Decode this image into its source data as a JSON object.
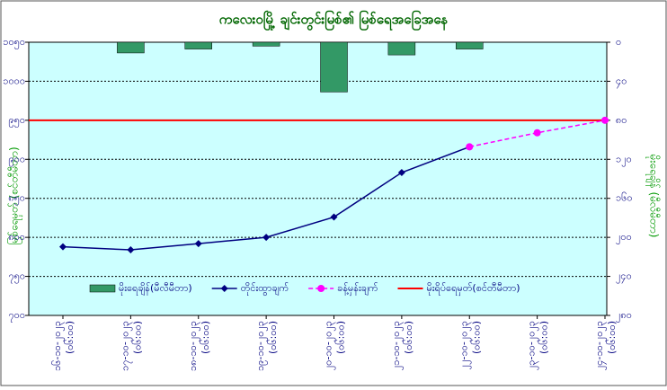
{
  "chart_data": {
    "type": "combo",
    "title": "ကလေးဝမြို့ ချင်းတွင်းမြစ်၏ မြစ်ရေအခြေအနေ",
    "ylabel": "မြစ်ရေမှတ် (စင်တီမီတာ)",
    "y2label": "မိုးရေချိန် (မီလီမီတာ)",
    "categories": [
      "၁၆-၁၀-၂၀၂၃",
      "၁၇-၁၀-၂၀၂၃",
      "၁၈-၁၀-၂၀၂၃",
      "၁၉-၁၀-၂၀၂၃",
      "၂၀-၁၀-၂၀၂၃",
      "၂၁-၁၀-၂၀၂၃",
      "၂၂-၁၀-၂၀၂၃",
      "၂၃-၁၀-၂၀၂၃",
      "၂၄-၁၀-၂၀၂၃"
    ],
    "category_sublabels": [
      "(၀၆:၀၀)",
      "(၀၆:၀၀)",
      "(၀၆:၀၀)",
      "(၀၆:၀၀)",
      "(၀၆:၀၀)",
      "(၀၆:၀၀)",
      "(၀၆:၀၀)",
      "(၀၆:၀၀)",
      "(၀၆:၀၀)"
    ],
    "ylim": [
      700,
      1050
    ],
    "yticks": [
      {
        "value": 700,
        "label": "၇၀၀"
      },
      {
        "value": 750,
        "label": "၇၅၀"
      },
      {
        "value": 800,
        "label": "၈၀၀"
      },
      {
        "value": 850,
        "label": "၈၅၀"
      },
      {
        "value": 900,
        "label": "၉၀၀"
      },
      {
        "value": 950,
        "label": "၉၅၀"
      },
      {
        "value": 1000,
        "label": "၁၀၀၀"
      },
      {
        "value": 1050,
        "label": "၁၀၅၀"
      }
    ],
    "y2lim": [
      0,
      280
    ],
    "y2_inverted": true,
    "y2ticks": [
      {
        "value": 0,
        "label": "၀"
      },
      {
        "value": 40,
        "label": "၄၀"
      },
      {
        "value": 80,
        "label": "၈၀"
      },
      {
        "value": 120,
        "label": "၁၂၀"
      },
      {
        "value": 160,
        "label": "၁၆၀"
      },
      {
        "value": 200,
        "label": "၂၀၀"
      },
      {
        "value": 240,
        "label": "၂၄၀"
      },
      {
        "value": 280,
        "label": "၂၈၀"
      }
    ],
    "grid": true,
    "series": [
      {
        "name": "မိုးရေချိန်(မီလီမီတာ)",
        "type": "bar",
        "axis": "y2",
        "color": "#339966",
        "values": [
          null,
          11,
          7,
          4,
          51,
          13,
          7,
          null,
          null
        ]
      },
      {
        "name": "တိုင်းထွာချက်",
        "type": "line",
        "marker": "diamond",
        "dashed": false,
        "color": "#000080",
        "values": [
          788,
          784,
          792,
          800,
          826,
          883,
          916,
          null,
          null
        ]
      },
      {
        "name": "ခန့်မှန်းချက်",
        "type": "line",
        "marker": "circle",
        "dashed": true,
        "color": "#ff00ff",
        "values": [
          null,
          null,
          null,
          null,
          null,
          null,
          916,
          934,
          950
        ]
      }
    ],
    "threshold": {
      "name": "မိုးရိပ်ရေမှတ်(စင်တီမီတာ)",
      "value": 950,
      "color": "#ff0000"
    }
  }
}
